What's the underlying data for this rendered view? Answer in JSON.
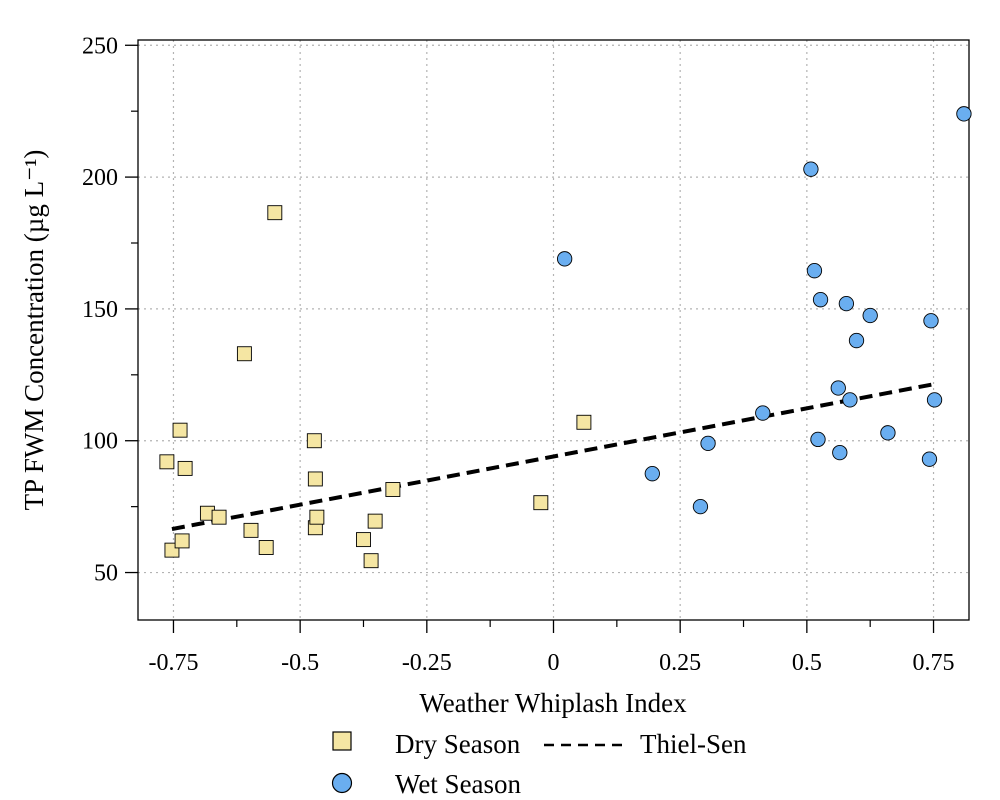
{
  "chart_data": {
    "type": "scatter",
    "xlabel": "Weather Whiplash Index",
    "ylabel": "TP FWM Concentration (µg L⁻¹)",
    "xlim": [
      -0.82,
      0.82
    ],
    "ylim": [
      32,
      252
    ],
    "xticks": [
      -0.75,
      -0.5,
      -0.25,
      0,
      0.25,
      0.5,
      0.75
    ],
    "xtick_labels": [
      "-0.75",
      "-0.5",
      "-0.25",
      "0",
      "0.25",
      "0.5",
      "0.75"
    ],
    "xminor": [
      -0.625,
      -0.375,
      -0.125,
      0.125,
      0.375,
      0.625
    ],
    "yticks": [
      50,
      100,
      150,
      200,
      250
    ],
    "ytick_labels": [
      "50",
      "100",
      "150",
      "200",
      "250"
    ],
    "yminor": [
      75,
      125,
      175,
      225
    ],
    "grid": true,
    "legend_position": "bottom",
    "series": [
      {
        "name": "Dry Season",
        "marker": "square",
        "color": "#f5e6a3",
        "points": [
          [
            -0.763,
            92
          ],
          [
            -0.753,
            58.5
          ],
          [
            -0.737,
            104
          ],
          [
            -0.733,
            62
          ],
          [
            -0.727,
            89.5
          ],
          [
            -0.683,
            72.5
          ],
          [
            -0.66,
            71
          ],
          [
            -0.61,
            133
          ],
          [
            -0.597,
            66
          ],
          [
            -0.567,
            59.5
          ],
          [
            -0.55,
            186.5
          ],
          [
            -0.472,
            100
          ],
          [
            -0.47,
            67
          ],
          [
            -0.47,
            85.5
          ],
          [
            -0.467,
            71
          ],
          [
            -0.375,
            62.5
          ],
          [
            -0.36,
            54.5
          ],
          [
            -0.352,
            69.5
          ],
          [
            -0.317,
            81.5
          ],
          [
            -0.025,
            76.5
          ],
          [
            0.06,
            107
          ]
        ]
      },
      {
        "name": "Wet Season",
        "marker": "circle",
        "color": "#6aaef0",
        "points": [
          [
            0.022,
            169
          ],
          [
            0.195,
            87.5
          ],
          [
            0.29,
            75
          ],
          [
            0.305,
            99
          ],
          [
            0.413,
            110.5
          ],
          [
            0.508,
            203
          ],
          [
            0.515,
            164.5
          ],
          [
            0.522,
            100.5
          ],
          [
            0.527,
            153.5
          ],
          [
            0.562,
            120
          ],
          [
            0.565,
            95.5
          ],
          [
            0.578,
            152
          ],
          [
            0.585,
            115.5
          ],
          [
            0.598,
            138
          ],
          [
            0.625,
            147.5
          ],
          [
            0.66,
            103
          ],
          [
            0.742,
            93
          ],
          [
            0.745,
            145.5
          ],
          [
            0.752,
            115.5
          ],
          [
            0.81,
            224
          ]
        ]
      }
    ],
    "trendline": {
      "name": "Thiel-Sen",
      "style": "dashed",
      "color": "#000000",
      "x": [
        -0.753,
        0.752
      ],
      "y": [
        66.5,
        121.5
      ]
    }
  }
}
